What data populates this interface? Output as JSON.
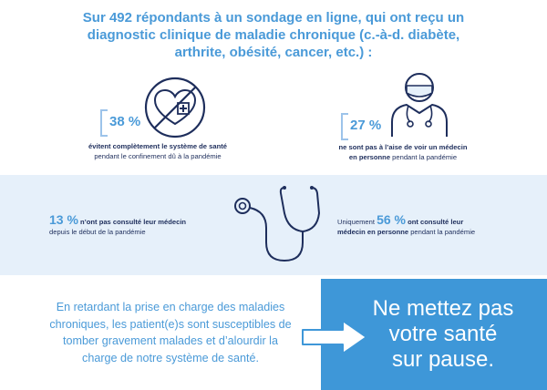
{
  "headline": "Sur 492 répondants à un sondage en ligne, qui ont reçu un diagnostic clinique de maladie chronique (c.-à-d. diabète, arthrite, obésité, cancer, etc.) :",
  "stat1": {
    "value": "38 %",
    "bold": "évitent complètement le système de santé",
    "rest": "pendant le confinement dû à la pandémie"
  },
  "stat2": {
    "value": "27 %",
    "bold1": "ne sont pas à l’aise de voir un médecin",
    "bold2": "en personne",
    "rest": " pendant la pandémie"
  },
  "stat3": {
    "value": "13 %",
    "bold": " n’ont pas consulté leur médecin",
    "rest": "depuis le début de la pandémie"
  },
  "stat4": {
    "prefix": "Uniquement ",
    "value": "56 %",
    "bold1": " ont consulté leur",
    "bold2": "médecin en personne",
    "rest": " pendant la pandémie"
  },
  "bottom_text": "En retardant la prise en charge des maladies chroniques, les patient(e)s sont susceptibles de tomber gravement malades et d’alourdir la charge de notre système de santé.",
  "cta": "Ne mettez pas\nvotre santé\nsur pause.",
  "colors": {
    "accent_blue": "#4a9ad8",
    "navy": "#1e2e5c",
    "band_bg": "#e6f0fa",
    "cta_bg": "#3e97d8"
  },
  "icons": [
    "no-healthcare-icon",
    "masked-doctor-icon",
    "stethoscope-icon",
    "arrow-right-icon"
  ]
}
